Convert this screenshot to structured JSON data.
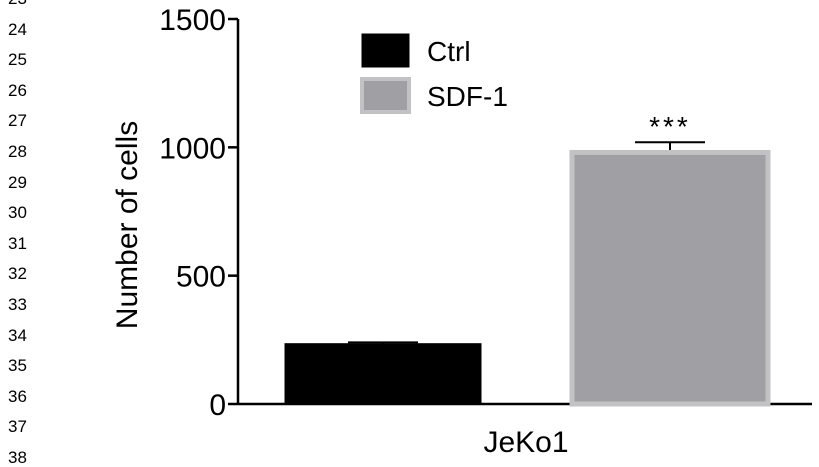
{
  "margin_line_numbers": [
    "23",
    "24",
    "25",
    "26",
    "27",
    "28",
    "29",
    "30",
    "31",
    "32",
    "33",
    "34",
    "35",
    "36",
    "37",
    "38"
  ],
  "chart_data": {
    "type": "bar",
    "title": "",
    "xlabel": "JeKo1",
    "ylabel": "Number of cells",
    "ylim": [
      0,
      1500
    ],
    "yticks": [
      0,
      500,
      1000,
      1500
    ],
    "categories": [
      "JeKo1"
    ],
    "series": [
      {
        "name": "Ctrl",
        "values": [
          235
        ],
        "errors": [
          5
        ],
        "color": "#000000"
      },
      {
        "name": "SDF-1",
        "values": [
          980
        ],
        "errors": [
          40
        ],
        "color": "#a0a0a4"
      }
    ],
    "annotations": [
      {
        "text": "***",
        "series": "SDF-1"
      }
    ],
    "legend_position": "top-center",
    "grid": false
  }
}
